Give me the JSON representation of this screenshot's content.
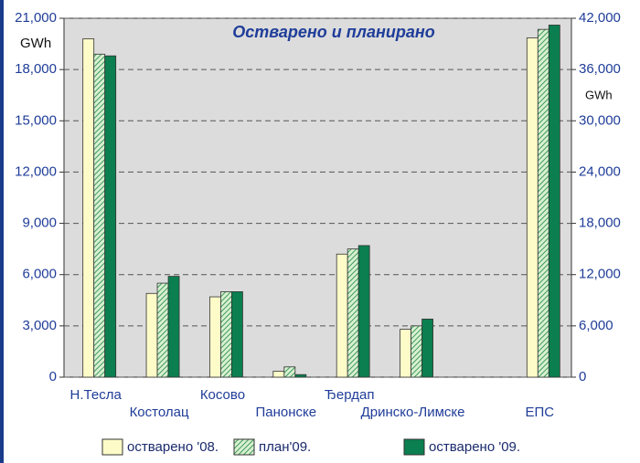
{
  "chart_data": {
    "type": "bar",
    "title": "Остварено и планирано",
    "ylabel": "GWh",
    "y2label": "GWh",
    "categories": [
      "Н.Тесла",
      "Костолац",
      "Косово",
      "Панонске",
      "Ђердап",
      "Дринско-Лимске",
      null,
      "ЕПС"
    ],
    "series": [
      {
        "name": "остварено '08.",
        "color": "#fdfbc8",
        "values": [
          19800,
          4900,
          4700,
          350,
          7200,
          2800,
          null,
          null
        ]
      },
      {
        "name": "план'09.",
        "color": "#a6d9a0",
        "hatch": true,
        "values": [
          18900,
          5500,
          5000,
          600,
          7500,
          3000,
          null,
          null
        ]
      },
      {
        "name": "остварено '09.",
        "color": "#0b7f4f",
        "values": [
          18800,
          5900,
          5000,
          150,
          7700,
          3400,
          null,
          null
        ]
      },
      {
        "name": "остварено '08.",
        "color": "#fdfbc8",
        "axis": "y2",
        "values": [
          null,
          null,
          null,
          null,
          null,
          null,
          null,
          39700
        ]
      },
      {
        "name": "план'09.",
        "color": "#a6d9a0",
        "hatch": true,
        "axis": "y2",
        "values": [
          null,
          null,
          null,
          null,
          null,
          null,
          null,
          40700
        ]
      },
      {
        "name": "остварено '09.",
        "color": "#0b7f4f",
        "axis": "y2",
        "values": [
          null,
          null,
          null,
          null,
          null,
          null,
          null,
          41200
        ]
      }
    ],
    "ylim": [
      0,
      21000
    ],
    "yticks": [
      0,
      {
        "value": 3000,
        "label": "3,000"
      },
      {
        "value": 6000,
        "label": "6,000"
      },
      {
        "value": 9000,
        "label": "9,000"
      },
      {
        "value": 12000,
        "label": "12,000"
      },
      {
        "value": 15000,
        "label": "15,000"
      },
      {
        "value": 18000,
        "label": "18,000"
      },
      {
        "value": 21000,
        "label": "21,000"
      }
    ],
    "y2lim": [
      0,
      42000
    ],
    "y2ticks": [
      0,
      {
        "value": 6000,
        "label": "6,000"
      },
      {
        "value": 12000,
        "label": "12,000"
      },
      {
        "value": 18000,
        "label": "18,000"
      },
      {
        "value": 24000,
        "label": "24,000"
      },
      {
        "value": 30000,
        "label": "30,000"
      },
      {
        "value": 36000,
        "label": "36,000"
      },
      {
        "value": 42000,
        "label": "42,000"
      }
    ],
    "grid": true
  }
}
